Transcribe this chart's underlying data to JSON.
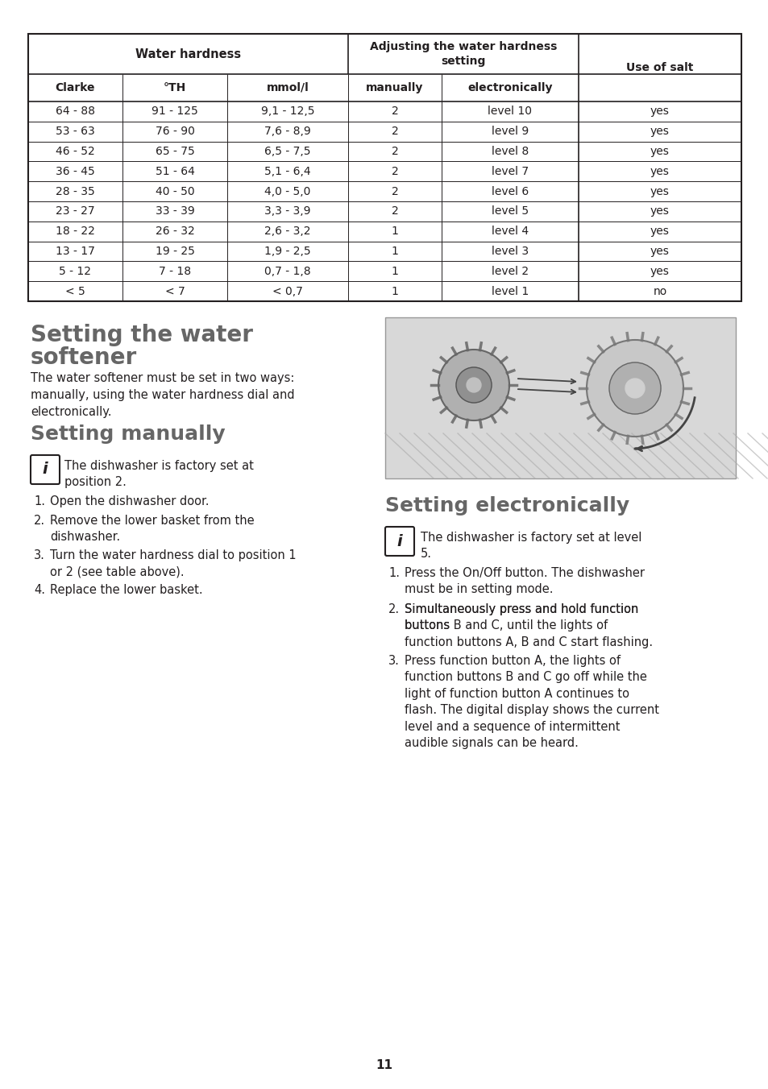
{
  "bg": "#ffffff",
  "border": "#231f20",
  "text_color": "#231f20",
  "heading_color": "#666666",
  "table_rows": [
    [
      "64 - 88",
      "91 - 125",
      "9,1 - 12,5",
      "2",
      "level 10",
      "yes"
    ],
    [
      "53 - 63",
      "76 - 90",
      "7,6 - 8,9",
      "2",
      "level 9",
      "yes"
    ],
    [
      "46 - 52",
      "65 - 75",
      "6,5 - 7,5",
      "2",
      "level 8",
      "yes"
    ],
    [
      "36 - 45",
      "51 - 64",
      "5,1 - 6,4",
      "2",
      "level 7",
      "yes"
    ],
    [
      "28 - 35",
      "40 - 50",
      "4,0 - 5,0",
      "2",
      "level 6",
      "yes"
    ],
    [
      "23 - 27",
      "33 - 39",
      "3,3 - 3,9",
      "2",
      "level 5",
      "yes"
    ],
    [
      "18 - 22",
      "26 - 32",
      "2,6 - 3,2",
      "1",
      "level 4",
      "yes"
    ],
    [
      "13 - 17",
      "19 - 25",
      "1,9 - 2,5",
      "1",
      "level 3",
      "yes"
    ],
    [
      "5 - 12",
      "7 - 18",
      "0,7 - 1,8",
      "1",
      "level 2",
      "yes"
    ],
    [
      "< 5",
      "< 7",
      "< 0,7",
      "1",
      "level 1",
      "no"
    ]
  ],
  "s1_title_line1": "Setting the water",
  "s1_title_line2": "softener",
  "s1_body": "The water softener must be set in two ways:\nmanually, using the water hardness dial and\nelectronically.",
  "s2_title": "Setting manually",
  "s2_info": "The dishwasher is factory set at\nposition 2.",
  "s2_steps": [
    "Open the dishwasher door.",
    "Remove the lower basket from the\ndishwasher.",
    "Turn the water hardness dial to position 1\nor 2 (see table above).",
    "Replace the lower basket."
  ],
  "s3_title": "Setting electronically",
  "s3_info": "The dishwasher is factory set at level\n5.",
  "s3_step1": "Press the On/Off button. The dishwasher\nmust be in setting mode.",
  "s3_step2": "Simultaneously press and hold function\nbuttons B and C, until the lights of\nfunction buttons A, B and C start flashing.",
  "s3_step2_bold": [
    "B",
    "C",
    "A",
    "B",
    "C"
  ],
  "s3_step3": "Press function button A, the lights of\nfunction buttons B and C go off while the\nlight of function button A continues to\nflash. The digital display shows the current\nlevel and a sequence of intermittent\naudible signals can be heard.",
  "s3_step3_bold": [
    "A",
    "B",
    "C",
    "A"
  ],
  "page_num": "11",
  "img_bg": "#d8d8d8",
  "img_border": "#aaaaaa"
}
